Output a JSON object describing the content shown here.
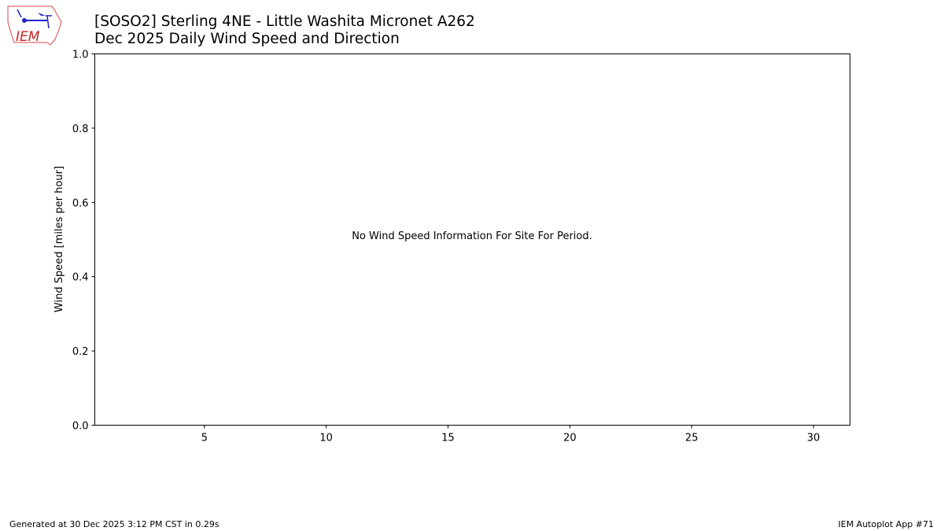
{
  "logo": {
    "text": "IEM"
  },
  "chart_data": {
    "type": "bar",
    "title": "[SOSO2] Sterling 4NE - Little Washita Micronet A262",
    "subtitle": "Dec 2025 Daily Wind Speed and Direction",
    "xlabel": "",
    "ylabel": "Wind Speed [miles per hour]",
    "xlim": [
      0.5,
      31.5
    ],
    "ylim": [
      0,
      1
    ],
    "x_ticks": [
      5,
      10,
      15,
      20,
      25,
      30
    ],
    "y_ticks": [
      0.0,
      0.2,
      0.4,
      0.6,
      0.8,
      1.0
    ],
    "y_tick_labels": [
      "0.0",
      "0.2",
      "0.4",
      "0.6",
      "0.8",
      "1.0"
    ],
    "categories": [],
    "values": [],
    "annotation": "No Wind Speed Information For Site For Period.",
    "grid": false
  },
  "footer": {
    "left": "Generated at 30 Dec 2025 3:12 PM CST in 0.29s",
    "right": "IEM Autoplot App #71"
  }
}
